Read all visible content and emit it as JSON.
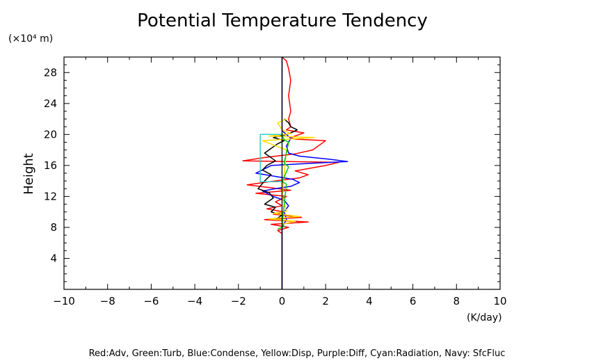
{
  "chart_data": {
    "type": "line",
    "title": "Potential Temperature Tendency",
    "ylabel": "Height",
    "y_unit": "(×10⁴ m)",
    "x_unit": "(K/day)",
    "xlim": [
      -10,
      10
    ],
    "ylim": [
      0,
      30
    ],
    "x_ticks": [
      "−10",
      "−8",
      "−6",
      "−4",
      "−2",
      "0",
      "2",
      "4",
      "6",
      "8",
      "10"
    ],
    "y_ticks": [
      "4",
      "8",
      "12",
      "16",
      "20",
      "24",
      "28"
    ],
    "legend_text": "Red:Adv, Green:Turb, Blue:Condense, Yellow:Disp, Purple:Diff, Cyan:Radiation, Navy: SfcFluc",
    "grid": false,
    "series": [
      {
        "color": "#ff0000",
        "points": [
          [
            0,
            0
          ],
          [
            0,
            5
          ],
          [
            0,
            7.2
          ],
          [
            -0.2,
            7.6
          ],
          [
            0.3,
            8
          ],
          [
            -0.5,
            8.4
          ],
          [
            1.2,
            8.7
          ],
          [
            -0.8,
            9
          ],
          [
            0.9,
            9.3
          ],
          [
            -0.4,
            9.7
          ],
          [
            0.1,
            10
          ],
          [
            -0.7,
            10.4
          ],
          [
            0,
            10.8
          ],
          [
            -0.3,
            11.3
          ],
          [
            0.2,
            12
          ],
          [
            -1.2,
            12.4
          ],
          [
            0.4,
            12.8
          ],
          [
            -1.6,
            13.5
          ],
          [
            -0.3,
            14
          ],
          [
            0.8,
            14.4
          ],
          [
            1.2,
            14.8
          ],
          [
            0.6,
            15.3
          ],
          [
            2,
            16
          ],
          [
            2.6,
            16.4
          ],
          [
            -1.8,
            16.6
          ],
          [
            -0.6,
            17.1
          ],
          [
            0.6,
            17.5
          ],
          [
            1.4,
            18
          ],
          [
            2,
            19.2
          ],
          [
            0.6,
            19.4
          ],
          [
            0.4,
            19.6
          ],
          [
            1,
            20.2
          ],
          [
            0.2,
            20.6
          ],
          [
            0.4,
            21
          ],
          [
            0.3,
            22
          ],
          [
            0.4,
            23
          ],
          [
            0.3,
            25
          ],
          [
            0.4,
            27
          ],
          [
            0.3,
            28.5
          ],
          [
            0.2,
            29.5
          ],
          [
            0,
            30
          ]
        ]
      },
      {
        "color": "#0000ff",
        "points": [
          [
            0,
            0
          ],
          [
            0,
            8
          ],
          [
            0.2,
            9
          ],
          [
            0.1,
            10
          ],
          [
            0.3,
            10.8
          ],
          [
            0.1,
            11.5
          ],
          [
            -0.4,
            12
          ],
          [
            -0.9,
            12.7
          ],
          [
            -0.3,
            13
          ],
          [
            0.4,
            13.3
          ],
          [
            0.8,
            13.8
          ],
          [
            0.5,
            14.2
          ],
          [
            0.1,
            14.4
          ],
          [
            -1.2,
            15
          ],
          [
            -0.5,
            16
          ],
          [
            1.5,
            16.3
          ],
          [
            3,
            16.5
          ],
          [
            2.2,
            16.8
          ],
          [
            0.8,
            17.2
          ],
          [
            0.3,
            17.6
          ],
          [
            0.2,
            18.5
          ],
          [
            0.4,
            19.5
          ],
          [
            0.2,
            20
          ],
          [
            0,
            20.5
          ],
          [
            0,
            22
          ],
          [
            0,
            30
          ]
        ]
      },
      {
        "color": "#000000",
        "points": [
          [
            -0.3,
            9
          ],
          [
            0,
            9.6
          ],
          [
            -0.5,
            10
          ],
          [
            -0.3,
            10.6
          ],
          [
            -0.8,
            11
          ],
          [
            -0.4,
            11.8
          ],
          [
            -0.6,
            12.5
          ],
          [
            -1.1,
            13
          ],
          [
            -0.8,
            14
          ],
          [
            -0.5,
            14.8
          ],
          [
            -0.9,
            15.4
          ],
          [
            -0.7,
            16
          ],
          [
            -0.3,
            16.6
          ],
          [
            -0.5,
            17
          ],
          [
            -0.8,
            17.6
          ],
          [
            -0.5,
            18.2
          ],
          [
            -0.2,
            18.8
          ],
          [
            0.1,
            19.2
          ],
          [
            -0.4,
            19.6
          ],
          [
            0.2,
            20
          ],
          [
            0.4,
            20.2
          ],
          [
            0.7,
            20.6
          ],
          [
            0.4,
            21
          ],
          [
            0.3,
            21.5
          ],
          [
            0.1,
            22
          ]
        ]
      },
      {
        "color": "#ffdd00",
        "points": [
          [
            0,
            8.4
          ],
          [
            0.6,
            8.8
          ],
          [
            -0.6,
            9.1
          ],
          [
            0.8,
            9.4
          ],
          [
            -0.4,
            9.8
          ],
          [
            0.2,
            10.1
          ],
          [
            0,
            12
          ],
          [
            0.2,
            18
          ],
          [
            -0.9,
            19.2
          ],
          [
            1.5,
            19.6
          ],
          [
            -0.6,
            19.8
          ],
          [
            0.4,
            20.1
          ],
          [
            0,
            20.6
          ],
          [
            -0.2,
            21.5
          ],
          [
            0.2,
            22
          ]
        ]
      },
      {
        "color": "#00cc00",
        "points": [
          [
            -0.2,
            7.8
          ],
          [
            0.1,
            8.1
          ],
          [
            0,
            8.4
          ],
          [
            0.2,
            13.6
          ],
          [
            0,
            13.9
          ],
          [
            0.3,
            15.8
          ],
          [
            0.1,
            16.3
          ],
          [
            0.3,
            19
          ],
          [
            0.1,
            19.3
          ],
          [
            0,
            20
          ]
        ]
      },
      {
        "color": "#33cccc",
        "points": [
          [
            0,
            13.9
          ],
          [
            -1,
            13.9
          ],
          [
            -1,
            20
          ],
          [
            0,
            20
          ]
        ]
      }
    ]
  }
}
